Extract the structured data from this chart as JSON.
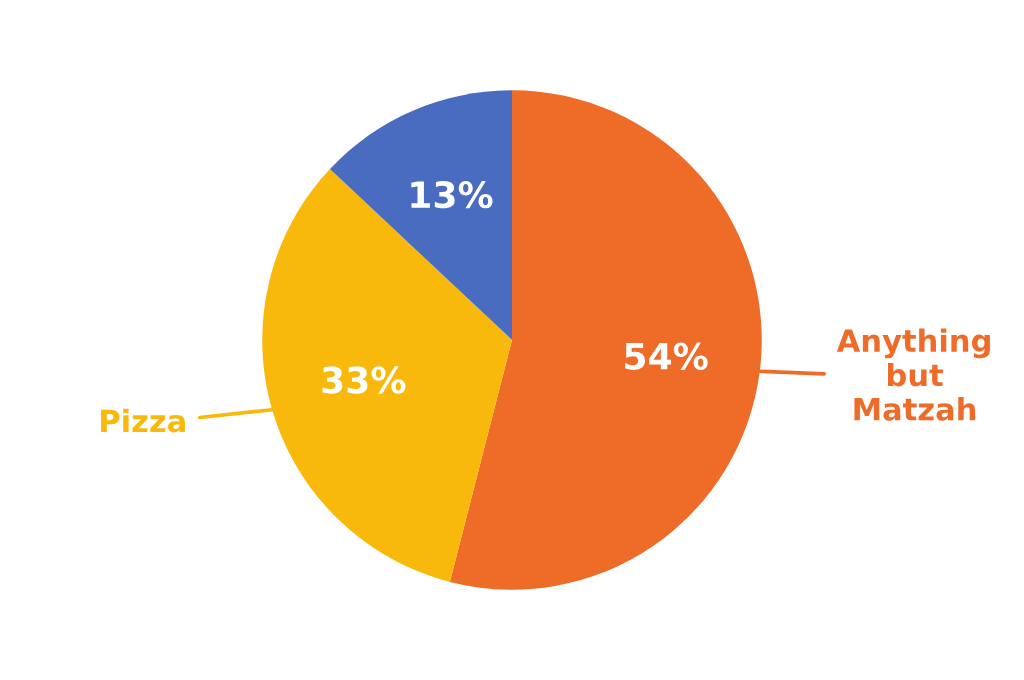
{
  "chart_data": {
    "type": "pie",
    "categories": [
      "Anything\nbut\nMatzah",
      "Pizza",
      null
    ],
    "values": [
      54,
      33,
      13
    ],
    "value_labels": [
      "54%",
      "33%",
      "13%"
    ],
    "colors": [
      "#ee6c27",
      "#f8b90c",
      "#4a6cc0"
    ],
    "legend": false
  }
}
